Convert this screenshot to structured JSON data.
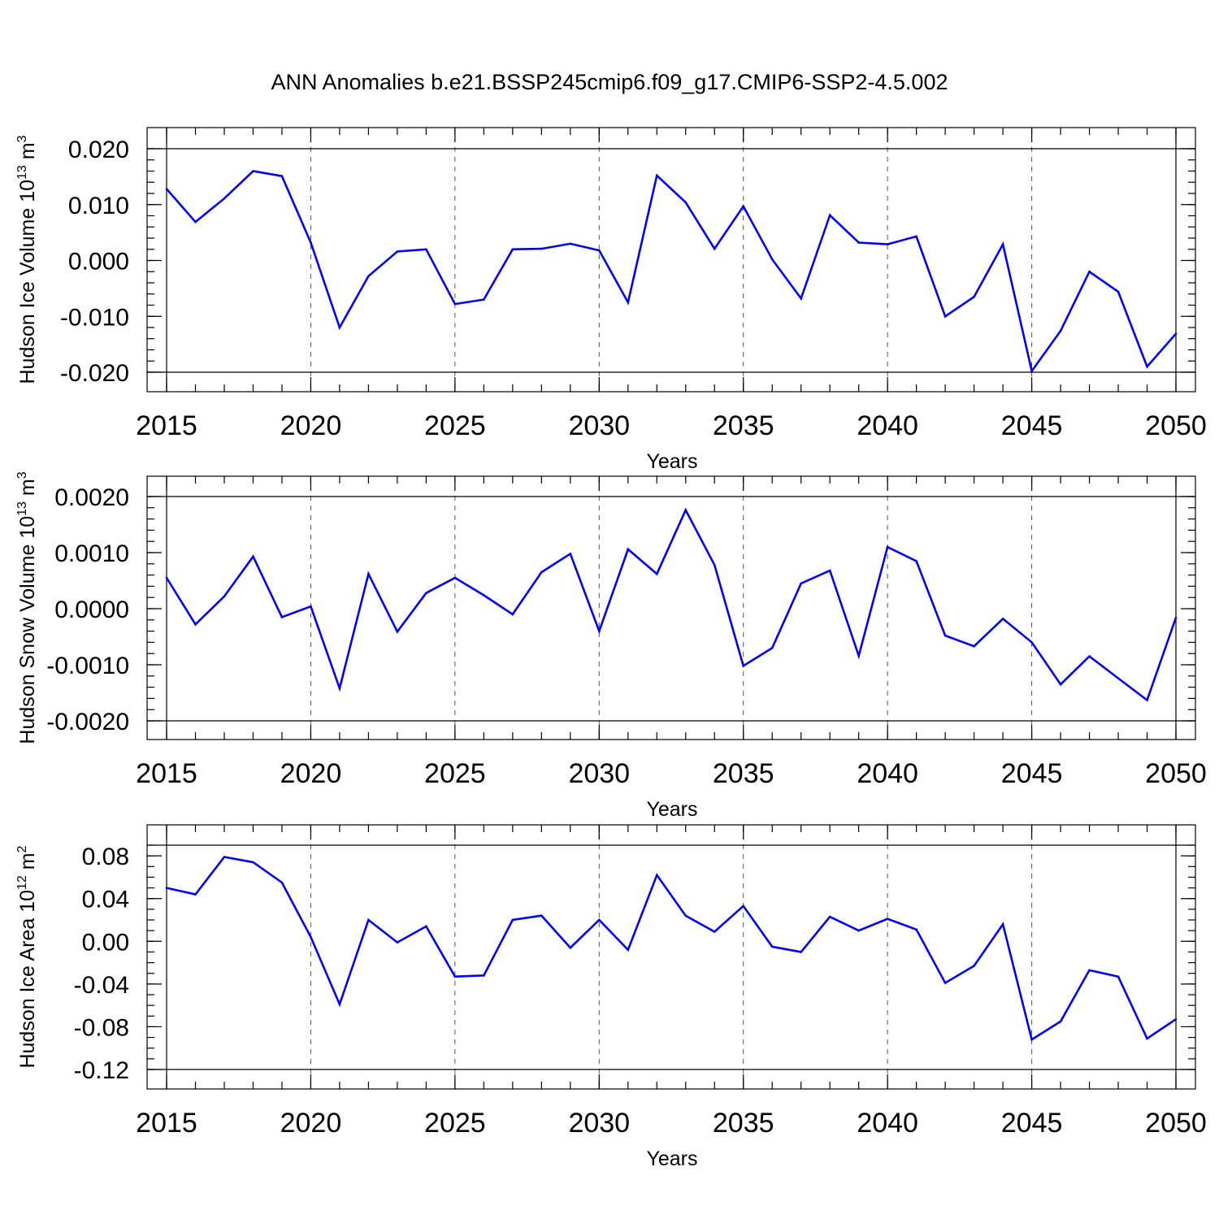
{
  "title": "ANN Anomalies b.e21.BSSP245cmip6.f09_g17.CMIP6-SSP2-4.5.002",
  "colors": {
    "series": "#0000ff",
    "axes": "#000000",
    "grid": "#555555"
  },
  "chart_data": [
    {
      "type": "line",
      "name_key": "panel-ice-volume",
      "ylabel": "Hudson Ice Volume 10",
      "ylabel_exp": "13",
      "ylabel_unit": "m",
      "ylabel_unit_exp": "3",
      "xlabel": "Years",
      "xlim": [
        2015,
        2050
      ],
      "ylim": [
        -0.02,
        0.02
      ],
      "yticks": [
        -0.02,
        -0.01,
        0.0,
        0.01,
        0.02
      ],
      "ytick_labels": [
        "-0.020",
        "-0.010",
        "0.000",
        "0.010",
        "0.020"
      ],
      "yminor_step": 0.002,
      "xticks": [
        2015,
        2020,
        2025,
        2030,
        2035,
        2040,
        2045,
        2050
      ],
      "xtick_labels": [
        "2015",
        "2020",
        "2025",
        "2030",
        "2035",
        "2040",
        "2045",
        "2050"
      ],
      "grid": "dashed vertical at major x ticks",
      "x": [
        2015,
        2016,
        2017,
        2018,
        2019,
        2020,
        2021,
        2022,
        2023,
        2024,
        2025,
        2026,
        2027,
        2028,
        2029,
        2030,
        2031,
        2032,
        2033,
        2034,
        2035,
        2036,
        2037,
        2038,
        2039,
        2040,
        2041,
        2042,
        2043,
        2044,
        2045,
        2046,
        2047,
        2048,
        2049,
        2050
      ],
      "values": [
        0.0128,
        0.0069,
        0.0111,
        0.016,
        0.0151,
        0.0032,
        -0.012,
        -0.0028,
        0.0016,
        0.002,
        -0.0078,
        -0.007,
        0.002,
        0.0021,
        0.003,
        0.0018,
        -0.0075,
        0.0152,
        0.0104,
        0.0021,
        0.0097,
        0.0002,
        -0.0068,
        0.0081,
        0.0032,
        0.0029,
        0.0043,
        -0.01,
        -0.0065,
        0.0029,
        -0.0198,
        -0.0126,
        -0.002,
        -0.0056,
        -0.019,
        -0.0131
      ]
    },
    {
      "type": "line",
      "name_key": "panel-snow-volume",
      "ylabel": "Hudson Snow Volume 10",
      "ylabel_exp": "13",
      "ylabel_unit": "m",
      "ylabel_unit_exp": "3",
      "xlabel": "Years",
      "xlim": [
        2015,
        2050
      ],
      "ylim": [
        -0.002,
        0.002
      ],
      "yticks": [
        -0.002,
        -0.001,
        0.0,
        0.001,
        0.002
      ],
      "ytick_labels": [
        "-0.0020",
        "-0.0010",
        "0.0000",
        "0.0010",
        "0.0020"
      ],
      "yminor_step": 0.0002,
      "xticks": [
        2015,
        2020,
        2025,
        2030,
        2035,
        2040,
        2045,
        2050
      ],
      "xtick_labels": [
        "2015",
        "2020",
        "2025",
        "2030",
        "2035",
        "2040",
        "2045",
        "2050"
      ],
      "grid": "dashed vertical at major x ticks",
      "x": [
        2015,
        2016,
        2017,
        2018,
        2019,
        2020,
        2021,
        2022,
        2023,
        2024,
        2025,
        2026,
        2027,
        2028,
        2029,
        2030,
        2031,
        2032,
        2033,
        2034,
        2035,
        2036,
        2037,
        2038,
        2039,
        2040,
        2041,
        2042,
        2043,
        2044,
        2045,
        2046,
        2047,
        2048,
        2049,
        2050
      ],
      "values": [
        0.00055,
        -0.00028,
        0.00022,
        0.00093,
        -0.00015,
        4e-05,
        -0.00142,
        0.00062,
        -0.00041,
        0.00028,
        0.00055,
        0.00024,
        -0.0001,
        0.00065,
        0.00098,
        -0.0004,
        0.00106,
        0.00062,
        0.00176,
        0.00078,
        -0.00102,
        -0.0007,
        0.00045,
        0.00068,
        -0.00084,
        0.0011,
        0.00085,
        -0.00048,
        -0.00067,
        -0.00018,
        -0.0006,
        -0.00135,
        -0.00085,
        -0.00124,
        -0.00163,
        -0.00016
      ]
    },
    {
      "type": "line",
      "name_key": "panel-ice-area",
      "ylabel": "Hudson Ice Area 10",
      "ylabel_exp": "12",
      "ylabel_unit": "m",
      "ylabel_unit_exp": "2",
      "xlabel": "Years",
      "xlim": [
        2015,
        2050
      ],
      "ylim": [
        -0.12,
        0.09
      ],
      "yticks": [
        -0.12,
        -0.08,
        -0.04,
        0.0,
        0.04,
        0.08
      ],
      "ytick_labels": [
        "-0.12",
        "-0.08",
        "-0.04",
        "0.00",
        "0.04",
        "0.08"
      ],
      "yminor_step": 0.01,
      "xticks": [
        2015,
        2020,
        2025,
        2030,
        2035,
        2040,
        2045,
        2050
      ],
      "xtick_labels": [
        "2015",
        "2020",
        "2025",
        "2030",
        "2035",
        "2040",
        "2045",
        "2050"
      ],
      "grid": "dashed vertical at major x ticks",
      "x": [
        2015,
        2016,
        2017,
        2018,
        2019,
        2020,
        2021,
        2022,
        2023,
        2024,
        2025,
        2026,
        2027,
        2028,
        2029,
        2030,
        2031,
        2032,
        2033,
        2034,
        2035,
        2036,
        2037,
        2038,
        2039,
        2040,
        2041,
        2042,
        2043,
        2044,
        2045,
        2046,
        2047,
        2048,
        2049,
        2050
      ],
      "values": [
        0.05,
        0.044,
        0.079,
        0.074,
        0.055,
        0.004,
        -0.059,
        0.02,
        -0.001,
        0.014,
        -0.033,
        -0.032,
        0.02,
        0.024,
        -0.006,
        0.02,
        -0.008,
        0.062,
        0.024,
        0.009,
        0.033,
        -0.005,
        -0.01,
        0.023,
        0.01,
        0.021,
        0.011,
        -0.039,
        -0.023,
        0.016,
        -0.092,
        -0.075,
        -0.027,
        -0.033,
        -0.091,
        -0.073
      ]
    }
  ]
}
